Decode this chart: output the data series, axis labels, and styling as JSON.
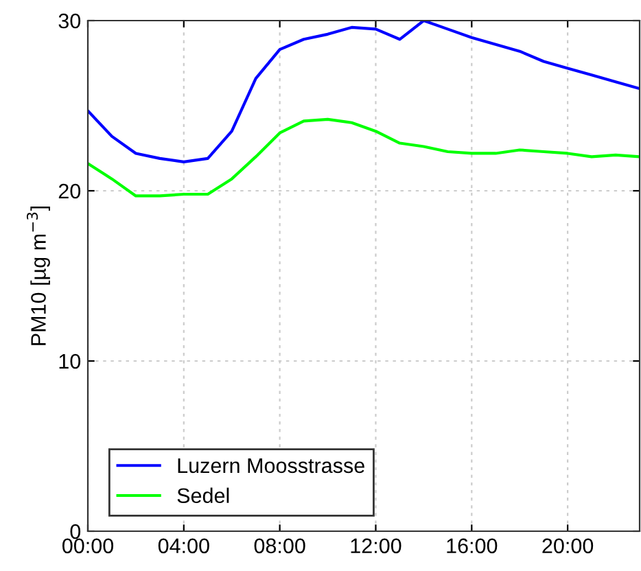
{
  "chart_data": {
    "type": "line",
    "ylabel": "PM10 [µg m$^{−3}$]",
    "x": [
      0,
      1,
      2,
      3,
      4,
      5,
      6,
      7,
      8,
      9,
      10,
      11,
      12,
      13,
      14,
      15,
      16,
      17,
      18,
      19,
      20,
      21,
      22,
      23
    ],
    "series": [
      {
        "name": "Luzern Moosstrasse",
        "color": "#0000ff",
        "values": [
          24.7,
          23.2,
          22.2,
          21.9,
          21.7,
          21.9,
          23.5,
          26.6,
          28.3,
          28.9,
          29.2,
          29.6,
          29.5,
          28.9,
          30.0,
          29.5,
          29.0,
          28.6,
          28.2,
          27.6,
          27.2,
          26.8,
          26.4,
          26.0
        ]
      },
      {
        "name": "Sedel",
        "color": "#00ff00",
        "values": [
          21.6,
          20.7,
          19.7,
          19.7,
          19.8,
          19.8,
          20.7,
          22.0,
          23.4,
          24.1,
          24.2,
          24.0,
          23.5,
          22.8,
          22.6,
          22.3,
          22.2,
          22.2,
          22.4,
          22.3,
          22.2,
          22.0,
          22.1,
          22.0
        ]
      }
    ],
    "xlim": [
      0,
      23
    ],
    "xticks": [
      {
        "value": 0,
        "label": "00:00"
      },
      {
        "value": 4,
        "label": "04:00"
      },
      {
        "value": 8,
        "label": "08:00"
      },
      {
        "value": 12,
        "label": "12:00"
      },
      {
        "value": 16,
        "label": "16:00"
      },
      {
        "value": 20,
        "label": "20:00"
      }
    ],
    "ylim": [
      0,
      30
    ],
    "yticks": [
      0,
      10,
      20,
      30
    ],
    "grid": true,
    "legend": "lower left",
    "line_style": "solid",
    "marker": "none"
  }
}
